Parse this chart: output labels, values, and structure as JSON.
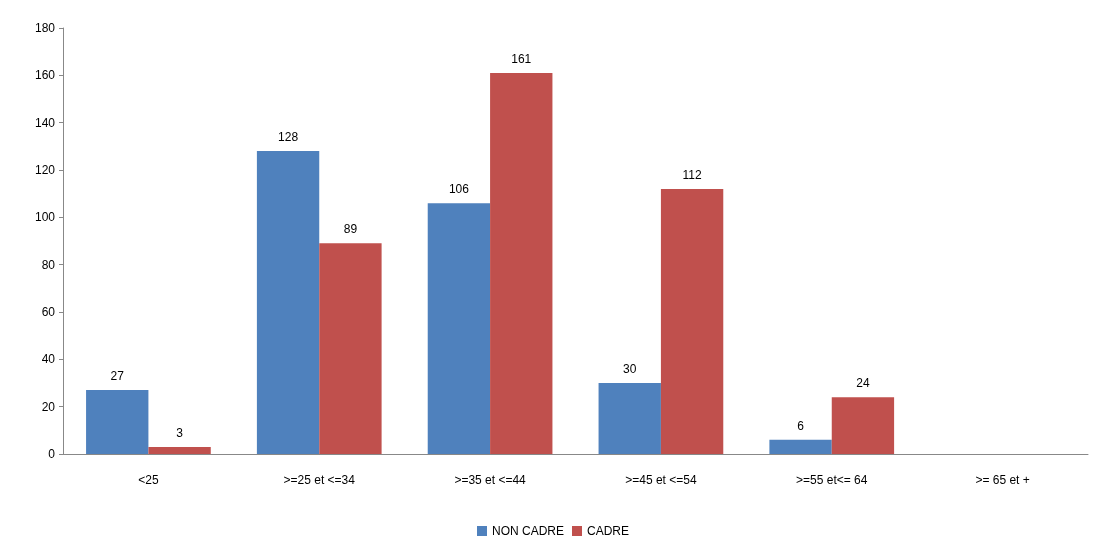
{
  "chart_data": {
    "type": "bar",
    "categories": [
      "<25",
      ">=25 et <=34",
      ">=35 et <=44",
      ">=45 et <=54",
      ">=55 et<= 64",
      ">= 65 et +"
    ],
    "series": [
      {
        "name": "NON CADRE",
        "color": "#4f81bd",
        "values": [
          27,
          128,
          106,
          30,
          6,
          null
        ]
      },
      {
        "name": "CADRE",
        "color": "#c0504d",
        "values": [
          3,
          89,
          161,
          112,
          24,
          null
        ]
      }
    ],
    "ylim": [
      0,
      180
    ],
    "yticks": [
      0,
      20,
      40,
      60,
      80,
      100,
      120,
      140,
      160,
      180
    ],
    "grid": false,
    "legend": "bottom",
    "data_labels": true
  }
}
